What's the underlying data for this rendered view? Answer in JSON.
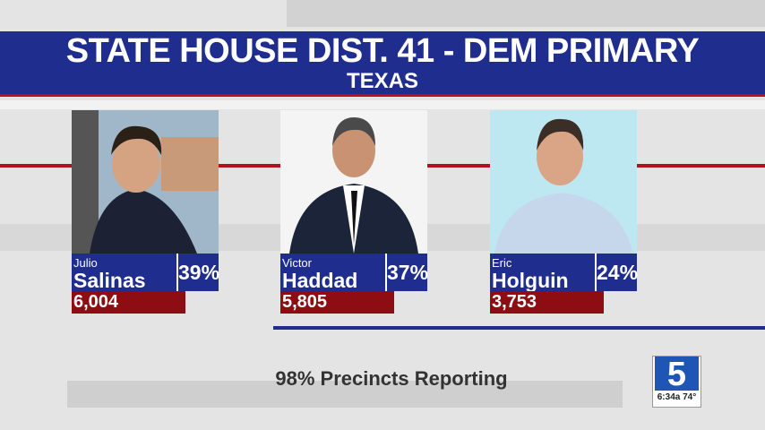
{
  "header": {
    "title": "STATE HOUSE DIST. 41 - DEM PRIMARY",
    "subtitle": "TEXAS"
  },
  "candidates": [
    {
      "first": "Julio",
      "last": "Salinas",
      "percent": "39%",
      "votes": "6,004"
    },
    {
      "first": "Victor",
      "last": "Haddad",
      "percent": "37%",
      "votes": "5,805"
    },
    {
      "first": "Eric",
      "last": "Holguin",
      "percent": "24%",
      "votes": "3,753"
    }
  ],
  "footer": "98% Precincts Reporting",
  "logo": {
    "channel": "5",
    "time": "6:34a",
    "temp": "74°"
  }
}
